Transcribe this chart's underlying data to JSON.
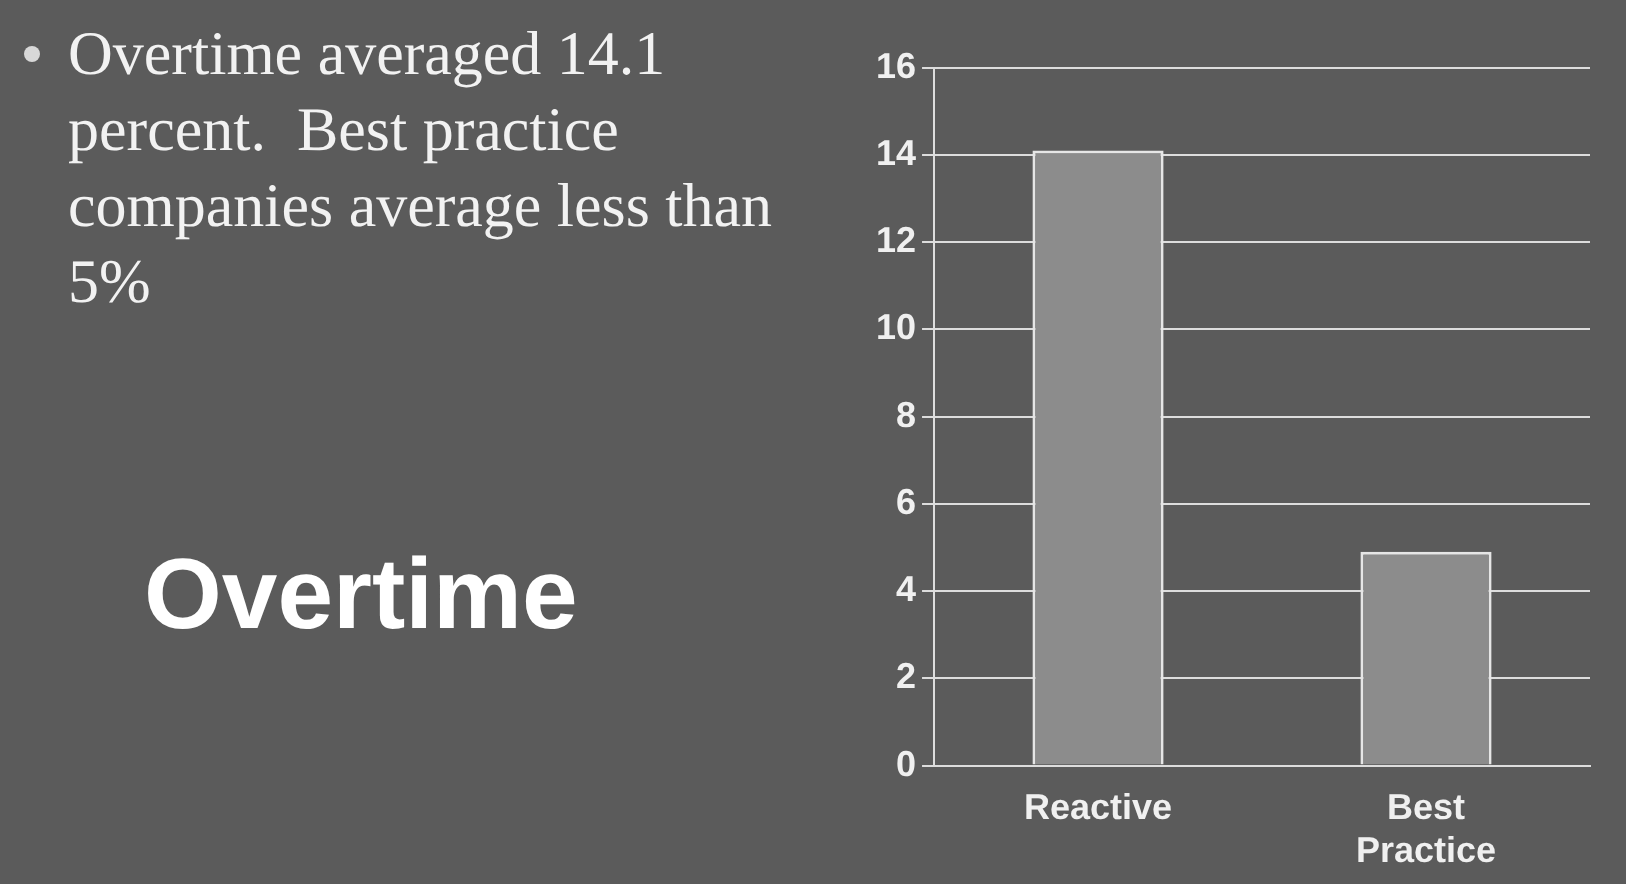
{
  "chart_data": {
    "type": "bar",
    "title": "Overtime",
    "annotations": [
      "Overtime averaged 14.1 percent.  Best practice companies average less than 5%"
    ],
    "categories": [
      "Reactive",
      "Best Practice"
    ],
    "values": [
      14.1,
      4.9
    ],
    "color": "#8c8c8c",
    "ylim": [
      0,
      16
    ],
    "yticks": [
      0,
      2,
      4,
      6,
      8,
      10,
      12,
      14,
      16
    ],
    "grid": "y"
  }
}
